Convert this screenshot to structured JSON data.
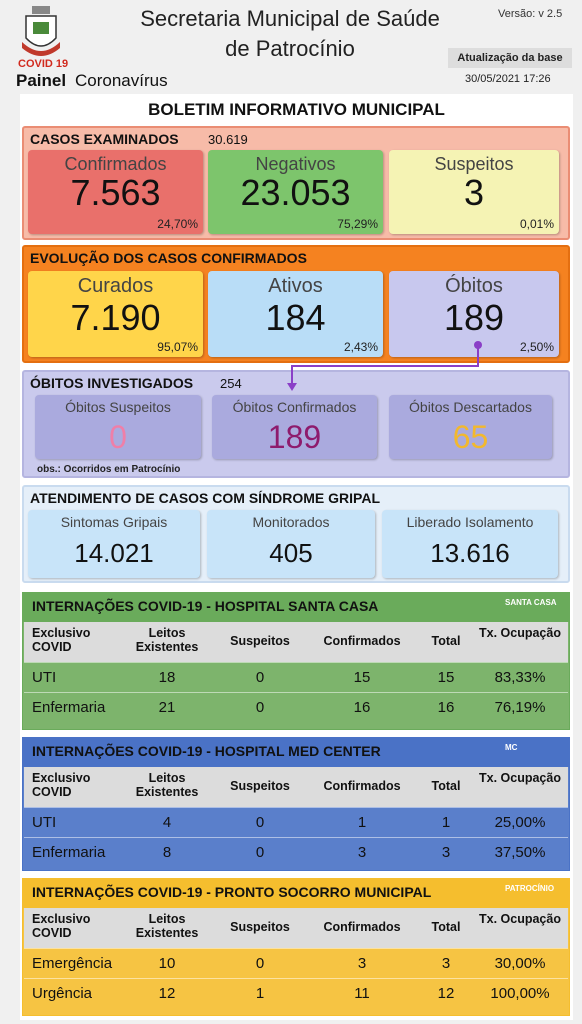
{
  "header": {
    "title_line1": "Secretaria Municipal de Saúde",
    "title_line2": "de Patrocínio",
    "version": "Versão: v 2.5",
    "covid": "COVID 19",
    "panel_bold": "Painel",
    "panel": "Coronavírus",
    "update_label": "Atualização da base",
    "update_date": "30/05/2021 17:26"
  },
  "bulletin_title": "BOLETIM INFORMATIVO MUNICIPAL",
  "examined": {
    "title": "CASOS EXAMINADOS",
    "total": "30.619",
    "cards": [
      {
        "label": "Confirmados",
        "value": "7.563",
        "pct": "24,70%"
      },
      {
        "label": "Negativos",
        "value": "23.053",
        "pct": "75,29%"
      },
      {
        "label": "Suspeitos",
        "value": "3",
        "pct": "0,01%"
      }
    ]
  },
  "evolution": {
    "title": "EVOLUÇÃO DOS CASOS CONFIRMADOS",
    "cards": [
      {
        "label": "Curados",
        "value": "7.190",
        "pct": "95,07%"
      },
      {
        "label": "Ativos",
        "value": "184",
        "pct": "2,43%"
      },
      {
        "label": "Óbitos",
        "value": "189",
        "pct": "2,50%"
      }
    ]
  },
  "deaths": {
    "title": "ÓBITOS INVESTIGADOS",
    "total": "254",
    "cards": [
      {
        "label": "Óbitos Suspeitos",
        "value": "0"
      },
      {
        "label": "Óbitos Confirmados",
        "value": "189"
      },
      {
        "label": "Óbitos Descartados",
        "value": "65"
      }
    ],
    "note": "obs.: Ocorridos em Patrocínio"
  },
  "flu": {
    "title": "ATENDIMENTO DE CASOS COM SÍNDROME GRIPAL",
    "cards": [
      {
        "label": "Sintomas Gripais",
        "value": "14.021"
      },
      {
        "label": "Monitorados",
        "value": "405"
      },
      {
        "label": "Liberado Isolamento",
        "value": "13.616"
      }
    ]
  },
  "hospitals": [
    {
      "title": "INTERNAÇÕES COVID-19 - HOSPITAL SANTA CASA",
      "logo": "SANTA CASA",
      "header": [
        "Exclusivo COVID",
        "Leitos Existentes",
        "Suspeitos",
        "Confirmados",
        "Total",
        "Tx. Ocupação"
      ],
      "rows": [
        [
          "UTI",
          "18",
          "0",
          "15",
          "15",
          "83,33%"
        ],
        [
          "Enfermaria",
          "21",
          "0",
          "16",
          "16",
          "76,19%"
        ]
      ]
    },
    {
      "title": "INTERNAÇÕES COVID-19 - HOSPITAL MED CENTER",
      "logo": "MC",
      "header": [
        "Exclusivo COVID",
        "Leitos Existentes",
        "Suspeitos",
        "Confirmados",
        "Total",
        "Tx. Ocupação"
      ],
      "rows": [
        [
          "UTI",
          "4",
          "0",
          "1",
          "1",
          "25,00%"
        ],
        [
          "Enfermaria",
          "8",
          "0",
          "3",
          "3",
          "37,50%"
        ]
      ]
    },
    {
      "title": "INTERNAÇÕES COVID-19 - PRONTO SOCORRO MUNICIPAL",
      "logo": "PATROCÍNIO",
      "header": [
        "Exclusivo COVID",
        "Leitos Existentes",
        "Suspeitos",
        "Confirmados",
        "Total",
        "Tx. Ocupação"
      ],
      "rows": [
        [
          "Emergência",
          "10",
          "0",
          "3",
          "3",
          "30,00%"
        ],
        [
          "Urgência",
          "12",
          "1",
          "11",
          "12",
          "100,00%"
        ]
      ]
    }
  ]
}
